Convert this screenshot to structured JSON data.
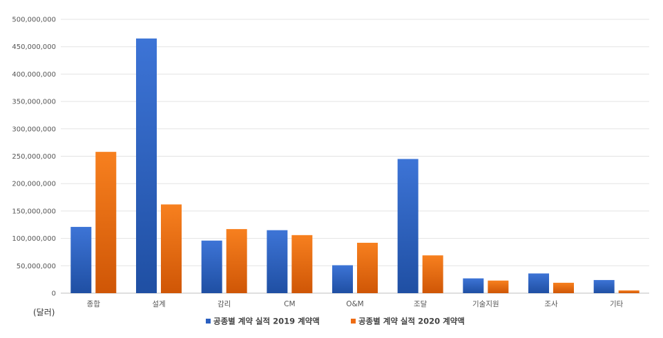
{
  "chart_data": {
    "type": "bar",
    "categories": [
      "종합",
      "설계",
      "감리",
      "CM",
      "O&M",
      "조달",
      "기술지원",
      "조사",
      "기타"
    ],
    "series": [
      {
        "name": "공종별 계약 실적 2019 계약액",
        "color": "#2a5fc0",
        "values": [
          121000000,
          465000000,
          96000000,
          115000000,
          51000000,
          245000000,
          27000000,
          36000000,
          24000000
        ]
      },
      {
        "name": "공종별 계약 실적 2020 계약액",
        "color": "#ee6c14",
        "values": [
          258000000,
          162000000,
          117000000,
          106000000,
          92000000,
          69000000,
          23000000,
          19000000,
          5000000
        ]
      }
    ],
    "yticks": [
      "0",
      "50,000,000",
      "100,000,000",
      "150,000,000",
      "200,000,000",
      "250,000,000",
      "300,000,000",
      "350,000,000",
      "400,000,000",
      "450,000,000",
      "500,000,000"
    ],
    "ylim": [
      0,
      500000000
    ],
    "ylabel": "(달러)",
    "grid": true,
    "legend_position": "bottom"
  }
}
